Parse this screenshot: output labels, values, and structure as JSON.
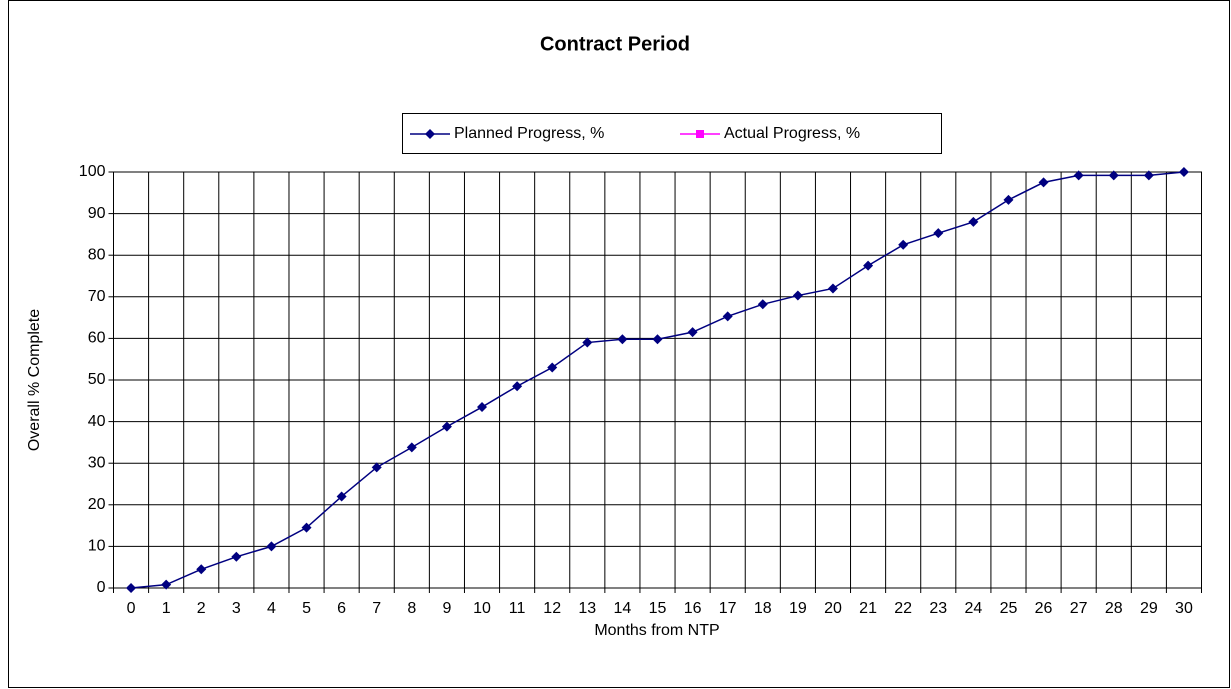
{
  "chart_data": {
    "type": "line",
    "title": "Contract Period",
    "x_label": "Months from NTP",
    "y_label": "Overall % Complete",
    "categories": [
      0,
      1,
      2,
      3,
      4,
      5,
      6,
      7,
      8,
      9,
      10,
      11,
      12,
      13,
      14,
      15,
      16,
      17,
      18,
      19,
      20,
      21,
      22,
      23,
      24,
      25,
      26,
      27,
      28,
      29,
      30
    ],
    "series": [
      {
        "name": "Planned Progress, %",
        "color": "#000080",
        "marker": "diamond",
        "values": [
          0,
          0.8,
          4.5,
          7.5,
          10,
          14.5,
          22,
          29,
          33.8,
          38.8,
          43.5,
          48.5,
          53,
          59,
          59.8,
          59.8,
          61.5,
          65.3,
          68.2,
          70.3,
          72,
          77.5,
          82.5,
          85.3,
          88,
          93.3,
          97.5,
          99.2,
          99.2,
          99.2,
          100
        ]
      },
      {
        "name": "Actual Progress, %",
        "color": "#ff00ff",
        "marker": "square",
        "values": [
          null,
          null,
          null,
          null,
          null,
          null,
          null,
          null,
          null,
          null,
          null,
          null,
          null,
          null,
          null,
          null,
          null,
          null,
          null,
          null,
          null,
          null,
          null,
          null,
          null,
          null,
          null,
          null,
          null,
          null,
          null
        ]
      }
    ],
    "ylim": [
      0,
      100
    ],
    "yticks": [
      0,
      10,
      20,
      30,
      40,
      50,
      60,
      70,
      80,
      90,
      100
    ],
    "grid": true,
    "legend": "top"
  }
}
